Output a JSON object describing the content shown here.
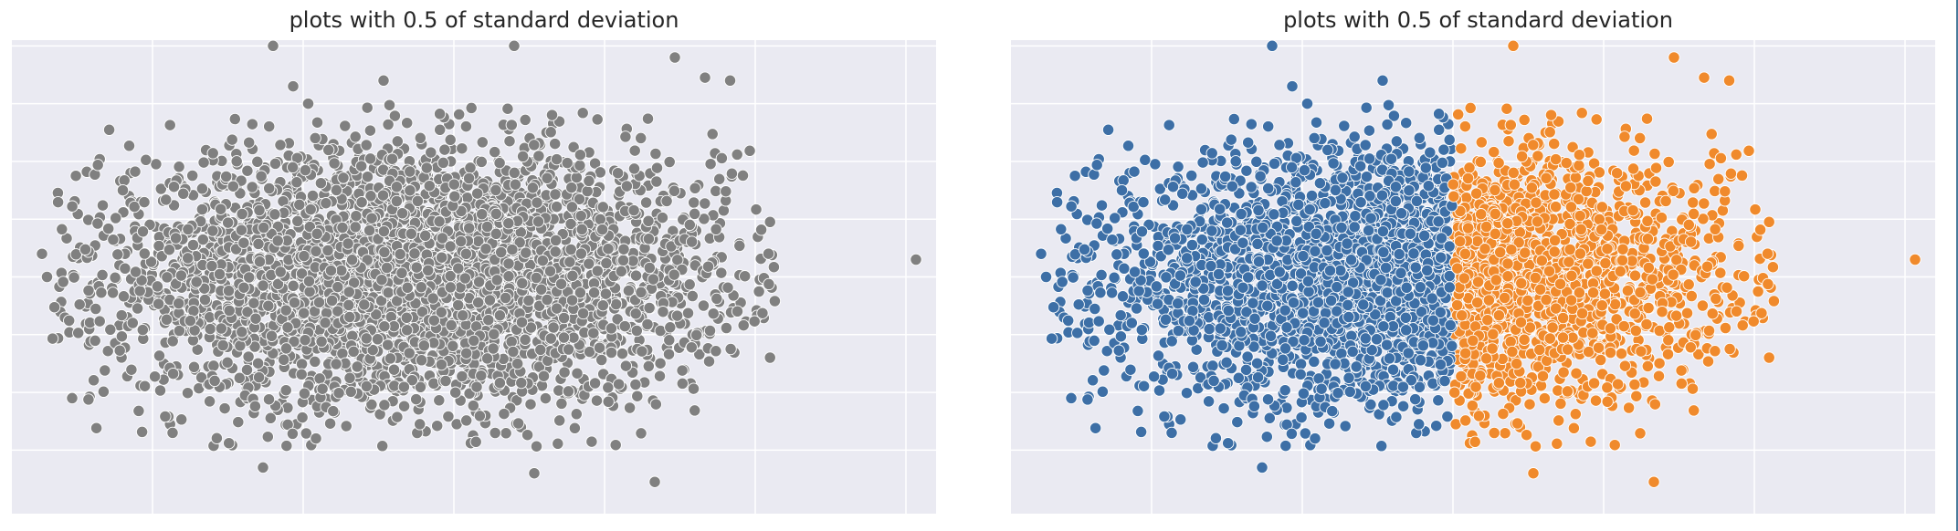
{
  "chart_data": [
    {
      "type": "scatter",
      "title": "plots with 0.5 of standard deviation",
      "xlabel": "",
      "ylabel": "",
      "xlim": [
        -4.6,
        4.6
      ],
      "ylim": [
        -4.1,
        4.1
      ],
      "grid": true,
      "x_gridlines": [
        -3.2,
        -1.7,
        -0.2,
        1.3,
        2.8,
        4.3
      ],
      "y_gridlines": [
        -3,
        -2,
        -1,
        0,
        1,
        2,
        3,
        4
      ],
      "series": [
        {
          "color": "#808080",
          "points": 4000,
          "x_center": -0.6,
          "x_sd": 1.55,
          "y_sd": 1.1
        }
      ],
      "outliers": [
        [
          -2.0,
          4.0
        ],
        [
          0.4,
          4.0
        ],
        [
          2.0,
          3.8
        ],
        [
          -1.65,
          3.0
        ],
        [
          -1.8,
          3.3
        ],
        [
          -0.9,
          3.4
        ],
        [
          2.3,
          3.45
        ],
        [
          2.55,
          3.4
        ],
        [
          -4.3,
          0.4
        ],
        [
          -4.25,
          0.0
        ],
        [
          4.4,
          0.3
        ],
        [
          -4.0,
          -2.1
        ],
        [
          -3.0,
          -2.7
        ],
        [
          -2.1,
          -3.3
        ],
        [
          0.6,
          -3.4
        ],
        [
          1.8,
          -3.55
        ]
      ]
    },
    {
      "type": "scatter",
      "title": "plots with 0.5 of standard deviation",
      "xlabel": "",
      "ylabel": "",
      "xlim": [
        -4.6,
        4.6
      ],
      "ylim": [
        -4.1,
        4.1
      ],
      "grid": true,
      "x_gridlines": [
        -3.2,
        -1.7,
        -0.2,
        1.3,
        2.8,
        4.3
      ],
      "y_gridlines": [
        -3,
        -2,
        -1,
        0,
        1,
        2,
        3,
        4
      ],
      "split_x": -0.2,
      "series": [
        {
          "color": "#3d6fa6",
          "points": 2000,
          "x_center": -0.6,
          "x_sd": 1.55,
          "y_sd": 1.1,
          "side": "left"
        },
        {
          "color": "#f08a2c",
          "points": 2000,
          "x_center": -0.6,
          "x_sd": 1.55,
          "y_sd": 1.1,
          "side": "right"
        }
      ],
      "outliers": [
        [
          -2.0,
          4.0
        ],
        [
          0.4,
          4.0
        ],
        [
          2.0,
          3.8
        ],
        [
          -1.65,
          3.0
        ],
        [
          -1.8,
          3.3
        ],
        [
          -0.9,
          3.4
        ],
        [
          2.3,
          3.45
        ],
        [
          2.55,
          3.4
        ],
        [
          -4.3,
          0.4
        ],
        [
          -4.25,
          0.0
        ],
        [
          4.4,
          0.3
        ],
        [
          -4.0,
          -2.1
        ],
        [
          -3.0,
          -2.7
        ],
        [
          -2.1,
          -3.3
        ],
        [
          0.6,
          -3.4
        ],
        [
          1.8,
          -3.55
        ]
      ]
    }
  ]
}
